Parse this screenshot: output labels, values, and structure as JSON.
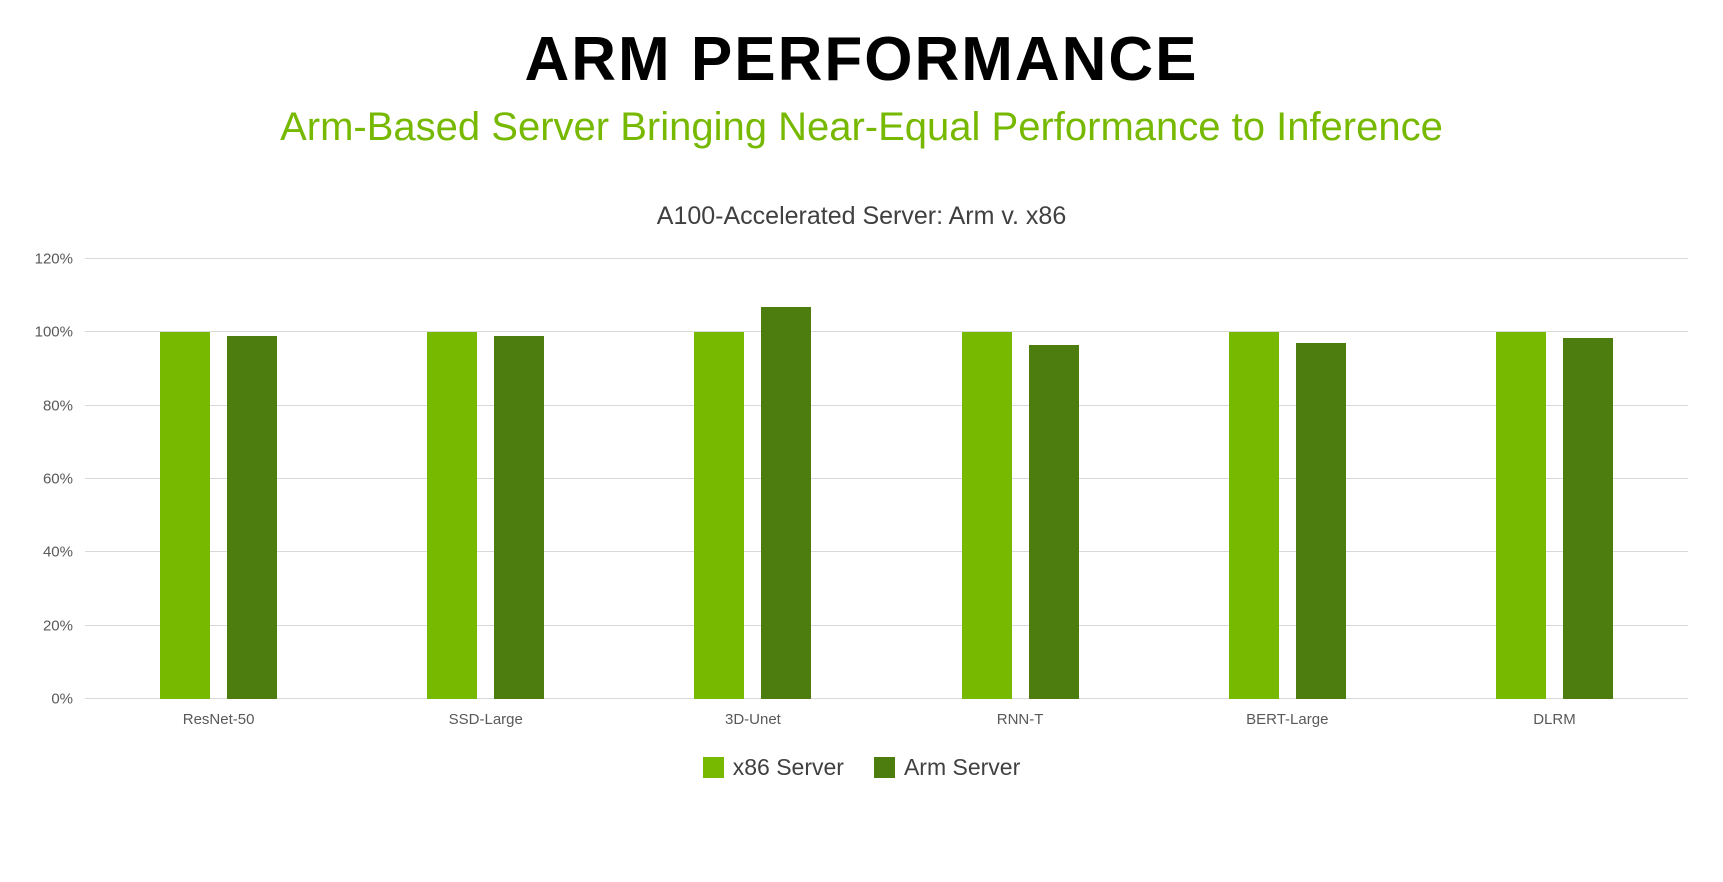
{
  "page": {
    "title": "ARM PERFORMANCE",
    "subtitle": "Arm-Based Server Bringing Near-Equal Performance to Inference"
  },
  "chart_data": {
    "type": "bar",
    "title": "A100-Accelerated Server: Arm v. x86",
    "categories": [
      "ResNet-50",
      "SSD-Large",
      "3D-Unet",
      "RNN-T",
      "BERT-Large",
      "DLRM"
    ],
    "series": [
      {
        "name": "x86 Server",
        "color": "#76b900",
        "values": [
          100,
          100,
          100,
          100,
          100,
          100
        ]
      },
      {
        "name": "Arm Server",
        "color": "#4d7c0f",
        "values": [
          99,
          99,
          107,
          96.5,
          97,
          98.5
        ]
      }
    ],
    "ylabel": "",
    "xlabel": "",
    "ylim": [
      0,
      120
    ],
    "ytick_step": 20,
    "ytick_labels": [
      "0%",
      "20%",
      "40%",
      "60%",
      "80%",
      "100%",
      "120%"
    ],
    "grid": true,
    "legend_position": "bottom"
  },
  "colors": {
    "title_black": "#000000",
    "subtitle_green": "#76b900",
    "axis_text": "#595959",
    "gridline": "#d9d9d9"
  }
}
